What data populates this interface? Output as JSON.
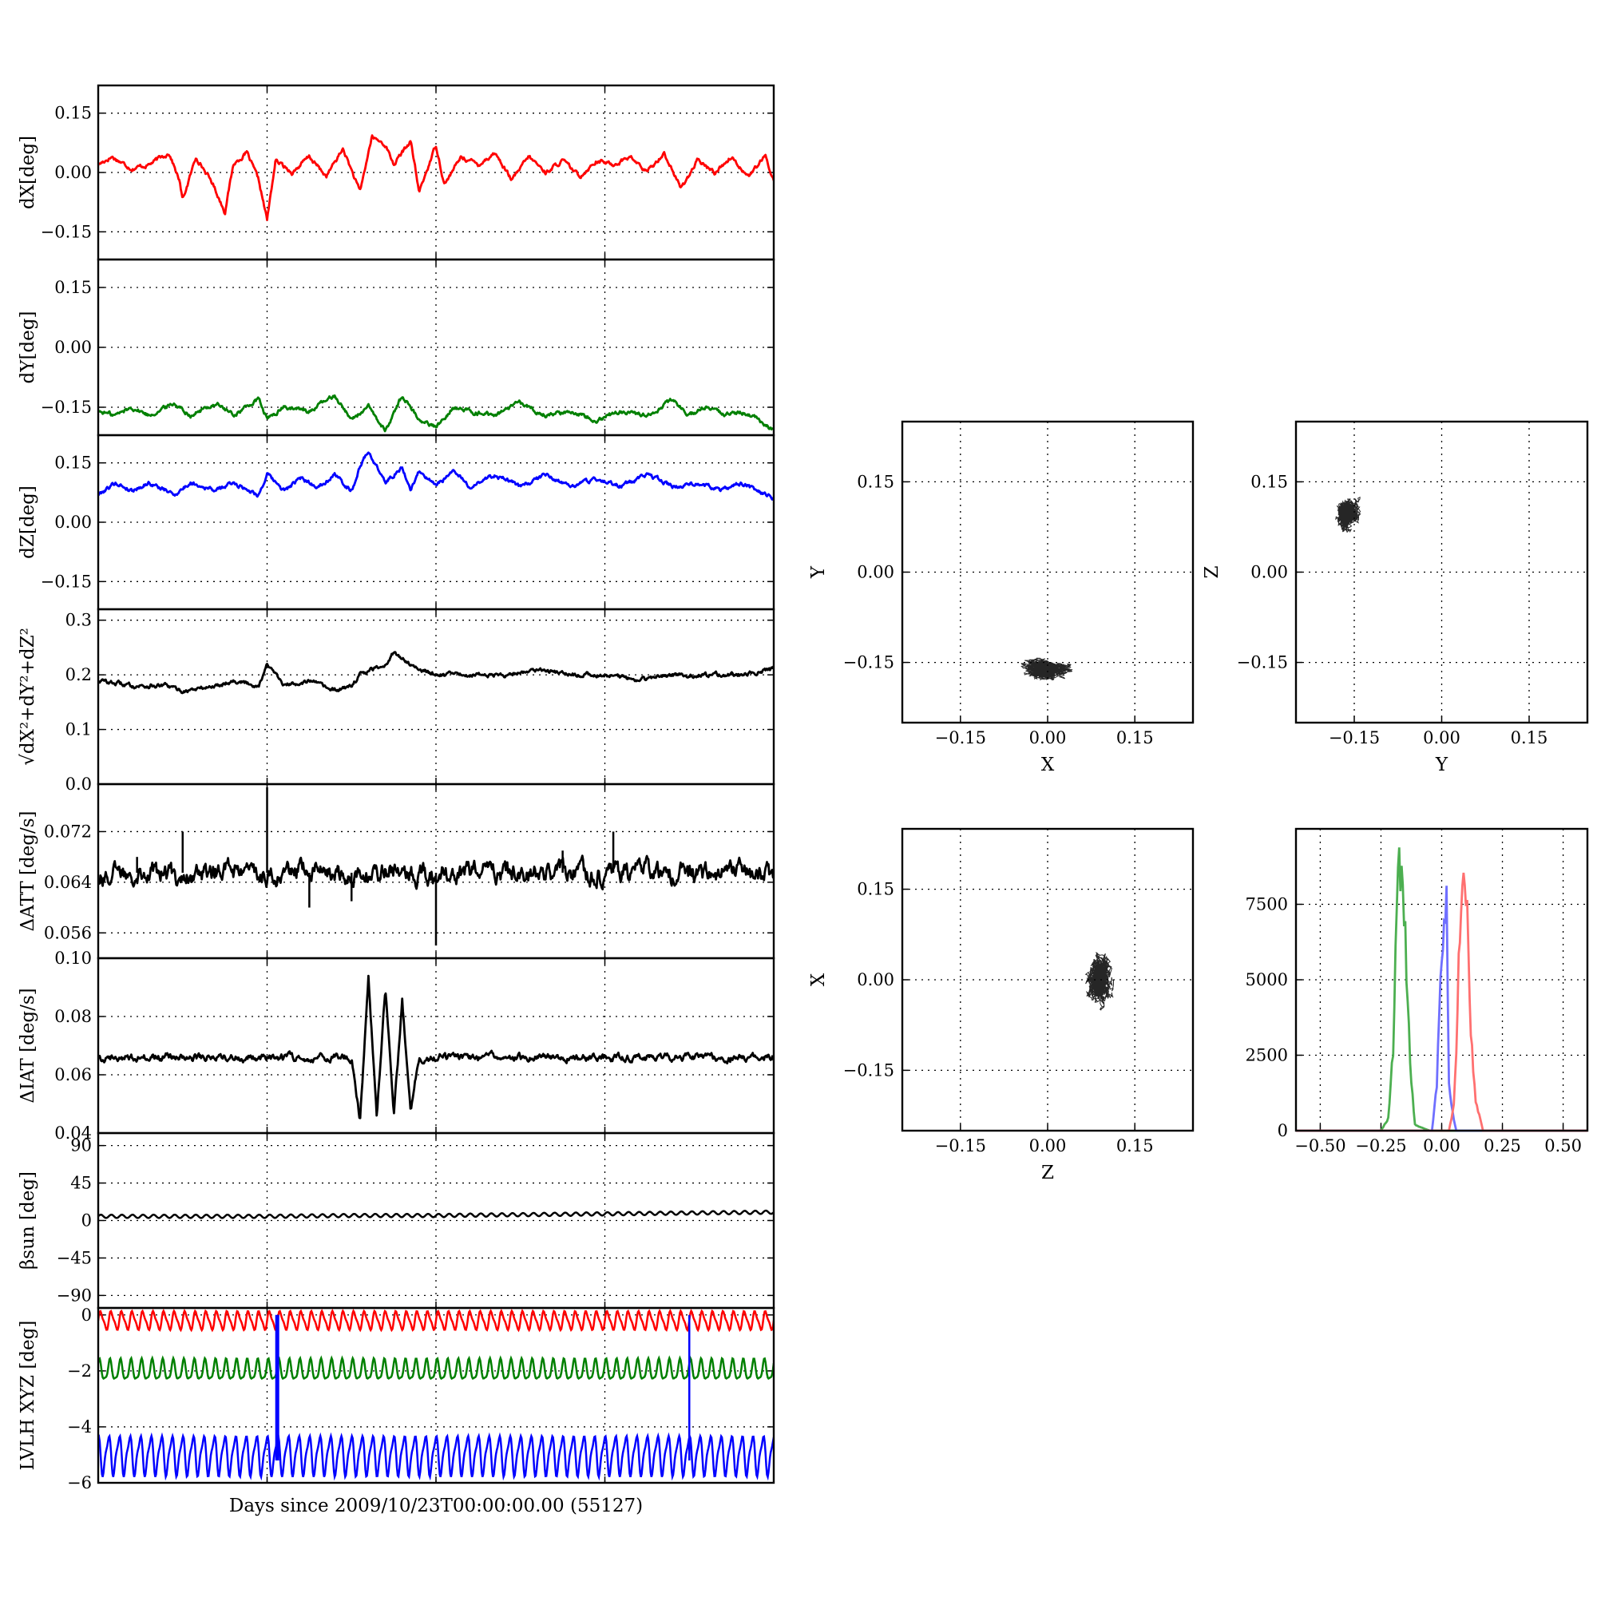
{
  "figure": {
    "xlabel": "Days since 2009/10/23T00:00:00.00 (55127)"
  },
  "chart_data": [
    {
      "id": "dx",
      "type": "line",
      "ylabel": "dX[deg]",
      "xlim": [
        0,
        4
      ],
      "ylim": [
        -0.22,
        0.22
      ],
      "yticks": [
        -0.15,
        0.0,
        0.15
      ],
      "ytick_labels": [
        "−0.15",
        "0.00",
        "0.15"
      ],
      "series": [
        {
          "color": "#ff0000",
          "x": [
            0,
            0.08,
            0.2,
            0.3,
            0.42,
            0.48,
            0.5,
            0.58,
            0.68,
            0.75,
            0.8,
            0.88,
            0.95,
            1.0,
            1.05,
            1.15,
            1.25,
            1.35,
            1.45,
            1.55,
            1.62,
            1.7,
            1.75,
            1.85,
            1.9,
            2.0,
            2.05,
            2.15,
            2.25,
            2.35,
            2.45,
            2.55,
            2.65,
            2.75,
            2.85,
            2.95,
            3.05,
            3.15,
            3.25,
            3.35,
            3.45,
            3.55,
            3.65,
            3.75,
            3.85,
            3.95,
            4.0
          ],
          "y": [
            0.02,
            0.04,
            0.01,
            0.02,
            0.05,
            -0.02,
            -0.07,
            0.04,
            -0.03,
            -0.1,
            0.02,
            0.05,
            -0.02,
            -0.12,
            0.03,
            0.0,
            0.04,
            -0.01,
            0.06,
            -0.05,
            0.09,
            0.07,
            0.02,
            0.08,
            -0.05,
            0.07,
            -0.03,
            0.04,
            0.02,
            0.05,
            -0.02,
            0.04,
            0.0,
            0.03,
            -0.01,
            0.03,
            0.02,
            0.04,
            0.0,
            0.05,
            -0.04,
            0.03,
            0.0,
            0.04,
            -0.01,
            0.04,
            -0.02
          ]
        }
      ]
    },
    {
      "id": "dy",
      "type": "line",
      "ylabel": "dY[deg]",
      "xlim": [
        0,
        4
      ],
      "ylim": [
        -0.22,
        0.22
      ],
      "yticks": [
        -0.15,
        0.0,
        0.15
      ],
      "ytick_labels": [
        "−0.15",
        "0.00",
        "0.15"
      ],
      "series": [
        {
          "color": "#008000",
          "x": [
            0,
            0.1,
            0.2,
            0.3,
            0.45,
            0.55,
            0.7,
            0.8,
            0.95,
            1.0,
            1.1,
            1.25,
            1.4,
            1.5,
            1.6,
            1.7,
            1.8,
            1.9,
            2.0,
            2.1,
            2.2,
            2.35,
            2.5,
            2.65,
            2.8,
            2.95,
            3.1,
            3.25,
            3.4,
            3.5,
            3.6,
            3.7,
            3.8,
            3.9,
            4.0
          ],
          "y": [
            -0.16,
            -0.17,
            -0.15,
            -0.17,
            -0.14,
            -0.17,
            -0.14,
            -0.17,
            -0.13,
            -0.18,
            -0.15,
            -0.16,
            -0.12,
            -0.18,
            -0.15,
            -0.21,
            -0.12,
            -0.18,
            -0.2,
            -0.15,
            -0.16,
            -0.17,
            -0.14,
            -0.17,
            -0.16,
            -0.18,
            -0.16,
            -0.17,
            -0.13,
            -0.17,
            -0.15,
            -0.17,
            -0.16,
            -0.18,
            -0.21
          ]
        }
      ]
    },
    {
      "id": "dz",
      "type": "line",
      "ylabel": "dZ[deg]",
      "xlim": [
        0,
        4
      ],
      "ylim": [
        -0.22,
        0.22
      ],
      "yticks": [
        -0.15,
        0.0,
        0.15
      ],
      "ytick_labels": [
        "−0.15",
        "0.00",
        "0.15"
      ],
      "series": [
        {
          "color": "#0000ff",
          "x": [
            0,
            0.1,
            0.2,
            0.3,
            0.45,
            0.55,
            0.7,
            0.8,
            0.95,
            1.0,
            1.1,
            1.2,
            1.3,
            1.4,
            1.5,
            1.55,
            1.6,
            1.7,
            1.8,
            1.85,
            1.9,
            2.0,
            2.1,
            2.2,
            2.35,
            2.5,
            2.65,
            2.8,
            2.95,
            3.1,
            3.25,
            3.4,
            3.55,
            3.7,
            3.8,
            3.9,
            4.0
          ],
          "y": [
            0.07,
            0.1,
            0.08,
            0.1,
            0.07,
            0.1,
            0.08,
            0.1,
            0.07,
            0.12,
            0.08,
            0.11,
            0.09,
            0.12,
            0.08,
            0.14,
            0.18,
            0.1,
            0.14,
            0.08,
            0.13,
            0.09,
            0.13,
            0.09,
            0.12,
            0.09,
            0.12,
            0.09,
            0.11,
            0.09,
            0.12,
            0.09,
            0.1,
            0.08,
            0.1,
            0.08,
            0.06
          ]
        }
      ]
    },
    {
      "id": "dr",
      "type": "line",
      "ylabel": "√dX²+dY²+dZ²",
      "xlim": [
        0,
        4
      ],
      "ylim": [
        0.0,
        0.32
      ],
      "yticks": [
        0.0,
        0.1,
        0.2,
        0.3
      ],
      "ytick_labels": [
        "0.0",
        "0.1",
        "0.2",
        "0.3"
      ],
      "series": [
        {
          "color": "#000000",
          "x": [
            0,
            0.2,
            0.4,
            0.5,
            0.7,
            0.8,
            0.95,
            1.0,
            1.1,
            1.25,
            1.4,
            1.5,
            1.55,
            1.7,
            1.75,
            1.85,
            1.9,
            2.0,
            2.2,
            2.4,
            2.6,
            2.8,
            3.0,
            3.2,
            3.4,
            3.6,
            3.8,
            4.0
          ],
          "y": [
            0.19,
            0.18,
            0.18,
            0.17,
            0.18,
            0.19,
            0.18,
            0.22,
            0.18,
            0.19,
            0.17,
            0.18,
            0.2,
            0.22,
            0.24,
            0.22,
            0.21,
            0.2,
            0.2,
            0.2,
            0.21,
            0.2,
            0.2,
            0.19,
            0.2,
            0.2,
            0.2,
            0.21
          ]
        }
      ]
    },
    {
      "id": "datt",
      "type": "line",
      "ylabel": "ΔATT [deg/s]",
      "xlim": [
        0,
        4
      ],
      "ylim": [
        0.052,
        0.0795
      ],
      "yticks": [
        0.056,
        0.064,
        0.072
      ],
      "ytick_labels": [
        "0.056",
        "0.064",
        "0.072"
      ],
      "series": [
        {
          "color": "#000000",
          "x": [
            0,
            0.25,
            0.5,
            0.75,
            1.0,
            1.25,
            1.5,
            1.75,
            2.0,
            2.25,
            2.5,
            2.75,
            3.0,
            3.25,
            3.5,
            3.75,
            4.0
          ],
          "y": [
            0.065,
            0.066,
            0.065,
            0.066,
            0.065,
            0.066,
            0.065,
            0.066,
            0.065,
            0.066,
            0.065,
            0.066,
            0.065,
            0.066,
            0.065,
            0.066,
            0.065
          ]
        }
      ],
      "spikes": {
        "x": [
          0.23,
          0.5,
          1.0,
          1.25,
          1.5,
          2.0,
          2.75,
          3.05
        ],
        "y": [
          0.068,
          0.072,
          0.079,
          0.06,
          0.061,
          0.054,
          0.069,
          0.072
        ]
      }
    },
    {
      "id": "diat",
      "type": "line",
      "ylabel": "ΔIAT [deg/s]",
      "xlim": [
        0,
        4
      ],
      "ylim": [
        0.04,
        0.1
      ],
      "yticks": [
        0.04,
        0.06,
        0.08,
        0.1
      ],
      "ytick_labels": [
        "0.04",
        "0.06",
        "0.08",
        "0.10"
      ],
      "series": [
        {
          "color": "#000000",
          "x": [
            0,
            0.5,
            1.0,
            1.5,
            1.55,
            1.6,
            1.65,
            1.7,
            1.75,
            1.8,
            1.85,
            1.9,
            2.0,
            2.5,
            3.0,
            3.5,
            4.0
          ],
          "y": [
            0.066,
            0.066,
            0.066,
            0.066,
            0.044,
            0.093,
            0.045,
            0.09,
            0.046,
            0.085,
            0.048,
            0.066,
            0.066,
            0.066,
            0.066,
            0.066,
            0.066
          ]
        }
      ]
    },
    {
      "id": "beta",
      "type": "line",
      "ylabel": "βsun [deg]",
      "xlim": [
        0,
        4
      ],
      "ylim": [
        -105,
        105
      ],
      "yticks": [
        -90,
        -45,
        0,
        45,
        90
      ],
      "ytick_labels": [
        "−90",
        "−45",
        "0",
        "45",
        "90"
      ],
      "series": [
        {
          "color": "#000000",
          "x": [
            0,
            0.5,
            1.0,
            1.5,
            2.0,
            2.5,
            3.0,
            3.5,
            4.0
          ],
          "y": [
            5,
            5,
            5,
            6,
            6,
            7,
            8,
            9,
            10
          ]
        }
      ]
    },
    {
      "id": "lvlh",
      "type": "line",
      "ylabel": "LVLH XYZ [deg]",
      "xlabel": "Days since 2009/10/23T00:00:00.00 (55127)",
      "xlim": [
        0,
        4
      ],
      "ylim": [
        -6.0,
        0.25
      ],
      "yticks": [
        -6,
        -4,
        -2,
        0
      ],
      "ytick_labels": [
        "−6",
        "−4",
        "−2",
        "0"
      ],
      "series": [
        {
          "color": "#ff0000",
          "mean": -0.2,
          "amp": 0.3
        },
        {
          "color": "#008000",
          "mean": -2.0,
          "amp": 0.35
        },
        {
          "color": "#0000ff",
          "mean": -5.0,
          "amp": 0.65
        }
      ],
      "jumps": {
        "x": [
          1.06,
          3.5
        ],
        "y_top": 0.0,
        "y_bottom": -5.2
      }
    },
    {
      "id": "xy-scatter",
      "type": "scatter",
      "xlabel": "X",
      "ylabel": "Y",
      "xlim": [
        -0.25,
        0.25
      ],
      "ylim": [
        -0.25,
        0.25
      ],
      "ticks": [
        -0.15,
        0.0,
        0.15
      ],
      "tick_labels": [
        "−0.15",
        "0.00",
        "0.15"
      ],
      "center": [
        0.0,
        -0.16
      ],
      "spread": [
        0.05,
        0.02
      ]
    },
    {
      "id": "yz-scatter",
      "type": "scatter",
      "xlabel": "Y",
      "ylabel": "Z",
      "xlim": [
        -0.25,
        0.25
      ],
      "ylim": [
        -0.25,
        0.25
      ],
      "ticks": [
        -0.15,
        0.0,
        0.15
      ],
      "tick_labels": [
        "−0.15",
        "0.00",
        "0.15"
      ],
      "center": [
        -0.16,
        0.1
      ],
      "spread": [
        0.025,
        0.03
      ]
    },
    {
      "id": "zx-scatter",
      "type": "scatter",
      "xlabel": "Z",
      "ylabel": "X",
      "xlim": [
        -0.25,
        0.25
      ],
      "ylim": [
        -0.25,
        0.25
      ],
      "ticks": [
        -0.15,
        0.0,
        0.15
      ],
      "tick_labels": [
        "−0.15",
        "0.00",
        "0.15"
      ],
      "center": [
        0.09,
        0.0
      ],
      "spread": [
        0.025,
        0.045
      ]
    },
    {
      "id": "histogram",
      "type": "line",
      "xlim": [
        -0.6,
        0.6
      ],
      "ylim": [
        0,
        10000
      ],
      "xticks": [
        -0.5,
        -0.25,
        0.0,
        0.25,
        0.5
      ],
      "xtick_labels": [
        "−0.50",
        "−0.25",
        "0.00",
        "0.25",
        "0.50"
      ],
      "yticks": [
        0,
        2500,
        5000,
        7500
      ],
      "ytick_labels": [
        "0",
        "2500",
        "5000",
        "7500"
      ],
      "series": [
        {
          "color": "#4caf50",
          "x": [
            -0.6,
            -0.25,
            -0.22,
            -0.2,
            -0.19,
            -0.18,
            -0.17,
            -0.16,
            -0.15,
            -0.13,
            -0.11,
            -0.05,
            0.6
          ],
          "y": [
            0,
            0,
            400,
            2600,
            6000,
            9300,
            8600,
            7600,
            6400,
            2200,
            200,
            0,
            0
          ]
        },
        {
          "color": "#6f6fff",
          "x": [
            -0.6,
            -0.04,
            -0.02,
            -0.01,
            0.0,
            0.01,
            0.02,
            0.03,
            0.04,
            0.06,
            0.6
          ],
          "y": [
            0,
            0,
            1500,
            4000,
            5800,
            6800,
            7700,
            1500,
            800,
            0,
            0
          ]
        },
        {
          "color": "#ff7070",
          "x": [
            -0.6,
            0.03,
            0.05,
            0.06,
            0.07,
            0.08,
            0.09,
            0.1,
            0.11,
            0.12,
            0.14,
            0.17,
            0.6
          ],
          "y": [
            0,
            0,
            800,
            2600,
            5500,
            7600,
            9300,
            7900,
            6000,
            3200,
            1000,
            0,
            0
          ]
        }
      ]
    }
  ]
}
